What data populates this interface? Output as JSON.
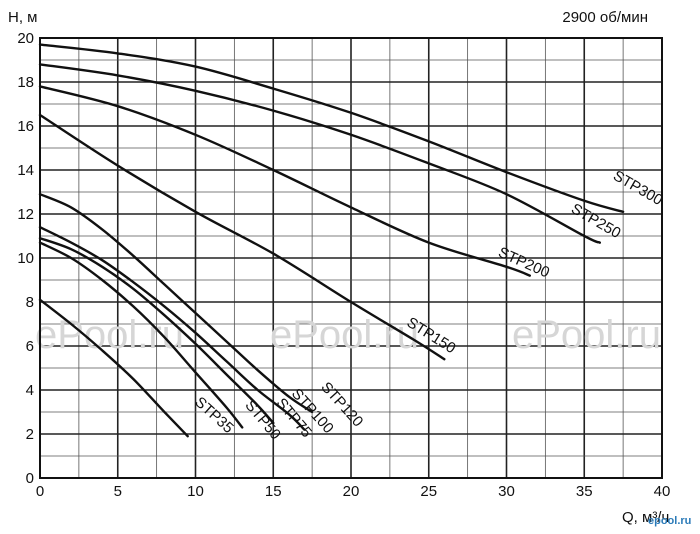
{
  "chart_data": {
    "type": "line",
    "title": "",
    "ylabel": "Н, м",
    "xlabel": "Q, м³/ч",
    "speed_label": "2900 об/мин",
    "xlim": [
      0,
      40
    ],
    "ylim": [
      0,
      20
    ],
    "x_ticks": [
      0,
      5,
      10,
      15,
      20,
      25,
      30,
      35,
      40
    ],
    "y_ticks": [
      0,
      2,
      4,
      6,
      8,
      10,
      12,
      14,
      16,
      18,
      20
    ],
    "minor_x_step": 2.5,
    "minor_y_step": 1,
    "grid": true,
    "series": [
      {
        "name": "STP35",
        "x": [
          0,
          2,
          4,
          6,
          8,
          9.5
        ],
        "y": [
          8.1,
          7.0,
          5.8,
          4.5,
          3.0,
          1.9
        ]
      },
      {
        "name": "STP50",
        "x": [
          0,
          2,
          4,
          6,
          8,
          10,
          12,
          13
        ],
        "y": [
          10.7,
          10.0,
          9.0,
          7.8,
          6.4,
          4.8,
          3.2,
          2.3
        ]
      },
      {
        "name": "STP75",
        "x": [
          0,
          2,
          4,
          6,
          8,
          10,
          12,
          14,
          15
        ],
        "y": [
          10.9,
          10.4,
          9.6,
          8.6,
          7.4,
          6.1,
          4.7,
          3.3,
          2.5
        ]
      },
      {
        "name": "STP100",
        "x": [
          0,
          2,
          4,
          6,
          8,
          10,
          12,
          14,
          16,
          17
        ],
        "y": [
          11.4,
          10.7,
          9.9,
          8.9,
          7.8,
          6.6,
          5.3,
          4.0,
          2.9,
          2.2
        ]
      },
      {
        "name": "STP120",
        "x": [
          0,
          2,
          4,
          6,
          8,
          10,
          12,
          14,
          16,
          17.5
        ],
        "y": [
          12.9,
          12.3,
          11.3,
          10.1,
          8.8,
          7.5,
          6.2,
          4.9,
          3.7,
          3.0
        ]
      },
      {
        "name": "STP150",
        "x": [
          0,
          5,
          10,
          15,
          20,
          24,
          26
        ],
        "y": [
          16.5,
          14.2,
          12.1,
          10.2,
          8.0,
          6.3,
          5.4
        ]
      },
      {
        "name": "STP200",
        "x": [
          0,
          5,
          10,
          15,
          20,
          25,
          30,
          31.5
        ],
        "y": [
          17.8,
          16.9,
          15.6,
          14.0,
          12.3,
          10.7,
          9.6,
          9.2
        ]
      },
      {
        "name": "STP250",
        "x": [
          0,
          5,
          10,
          15,
          20,
          25,
          30,
          35,
          36
        ],
        "y": [
          18.8,
          18.3,
          17.6,
          16.7,
          15.6,
          14.3,
          12.9,
          11.0,
          10.7
        ]
      },
      {
        "name": "STP300",
        "x": [
          0,
          5,
          10,
          15,
          20,
          25,
          30,
          35,
          37.5
        ],
        "y": [
          19.7,
          19.3,
          18.7,
          17.7,
          16.6,
          15.3,
          13.9,
          12.6,
          12.1
        ]
      }
    ],
    "curve_labels": [
      {
        "text": "STP35",
        "x": 11.0,
        "y": 2.7,
        "angle": 42
      },
      {
        "text": "STP50",
        "x": 14.1,
        "y": 2.5,
        "angle": 50
      },
      {
        "text": "STP75",
        "x": 16.1,
        "y": 2.6,
        "angle": 50
      },
      {
        "text": "STP100",
        "x": 17.3,
        "y": 2.9,
        "angle": 48
      },
      {
        "text": "STP120",
        "x": 19.2,
        "y": 3.2,
        "angle": 48
      },
      {
        "text": "STP150",
        "x": 25.0,
        "y": 6.3,
        "angle": 32
      },
      {
        "text": "STP200",
        "x": 31.0,
        "y": 9.6,
        "angle": 24
      },
      {
        "text": "STP250",
        "x": 35.6,
        "y": 11.5,
        "angle": 30
      },
      {
        "text": "STP300",
        "x": 38.3,
        "y": 13.0,
        "angle": 30
      }
    ]
  },
  "watermark": {
    "text": "ePool.ru",
    "repeat": 3
  },
  "brand_logo": "epool.ru"
}
